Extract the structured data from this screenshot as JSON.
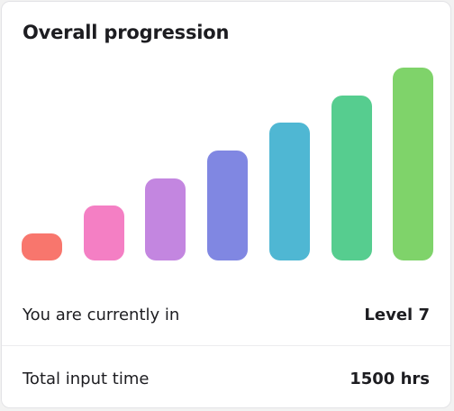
{
  "card": {
    "title": "Overall progression"
  },
  "chart_data": {
    "type": "bar",
    "categories": [
      "",
      "",
      "",
      "",
      "",
      "",
      ""
    ],
    "values": [
      1,
      2,
      3,
      4,
      5,
      6,
      7
    ],
    "max": 7,
    "colors": [
      "#f8766d",
      "#f47fc4",
      "#c386e0",
      "#8087e2",
      "#4fb7d3",
      "#56cd8f",
      "#7fd36a"
    ]
  },
  "stats": [
    {
      "label": "You are currently in",
      "value": "Level 7"
    },
    {
      "label": "Total input time",
      "value": "1500 hrs"
    }
  ]
}
